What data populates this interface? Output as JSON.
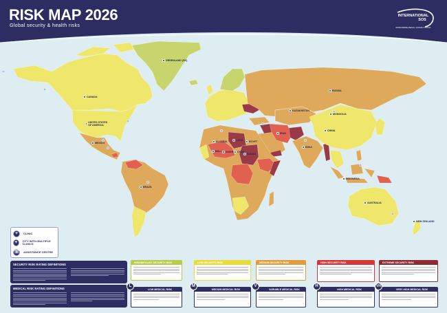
{
  "header": {
    "title": "RISK MAP 2026",
    "subtitle": "Global security & health risks",
    "logo": {
      "line1": "INTERNATIONAL",
      "line2": "SOS",
      "tagline": "WORLDWIDE REACH. HUMAN TOUCH."
    }
  },
  "colors": {
    "ocean": "#deedf2",
    "navy": "#2d2d62",
    "insignificant": "#c8d46c",
    "low": "#efe66c",
    "medium": "#dfa95c",
    "high": "#e0614f",
    "extreme": "#9a3a46"
  },
  "map": {
    "labels": [
      "GREENLAND (DK)",
      "CANADA",
      "UNITED STATES OF AMERICA",
      "MEXICO",
      "BRAZIL",
      "RUSSIA",
      "KAZAKHSTAN",
      "MONGOLIA",
      "CHINA",
      "INDIA",
      "IRAN",
      "ALGERIA",
      "LIBYA",
      "EGYPT",
      "MALI",
      "NIGER",
      "CHAD",
      "SUDAN",
      "INDONESIA",
      "AUSTRALIA",
      "NEW ZEALAND"
    ]
  },
  "legend": {
    "items": [
      {
        "icon": "clinic-icon",
        "label": "CLINIC"
      },
      {
        "icon": "multi-clinic-icon",
        "label": "CITY WITH MULTIPLE CLINICS"
      },
      {
        "icon": "phone-icon",
        "label": "ASSISTANCE CENTRE"
      }
    ]
  },
  "definitions": {
    "security_title": "SECURITY RISK RATING DEFINITIONS",
    "medical_title": "MEDICAL RISK RATING DEFINITIONS"
  },
  "security_levels": [
    {
      "label": "INSIGNIFICANT SECURITY RISK",
      "color": "#b7cc48"
    },
    {
      "label": "LOW SECURITY RISK",
      "color": "#e9dc3a"
    },
    {
      "label": "MEDIUM SECURITY RISK",
      "color": "#df9d3e"
    },
    {
      "label": "HIGH SECURITY RISK",
      "color": "#d8353a"
    },
    {
      "label": "EXTREME SECURITY RISK",
      "color": "#8e2a30"
    }
  ],
  "medical_levels": [
    {
      "badge": "L",
      "label": "LOW MEDICAL RISK"
    },
    {
      "badge": "M",
      "label": "MEDIUM MEDICAL RISK"
    },
    {
      "badge": "V",
      "label": "VARIABLE MEDICAL RISK"
    },
    {
      "badge": "H",
      "label": "HIGH MEDICAL RISK"
    },
    {
      "badge": "VH",
      "label": "VERY HIGH MEDICAL RISK"
    }
  ]
}
